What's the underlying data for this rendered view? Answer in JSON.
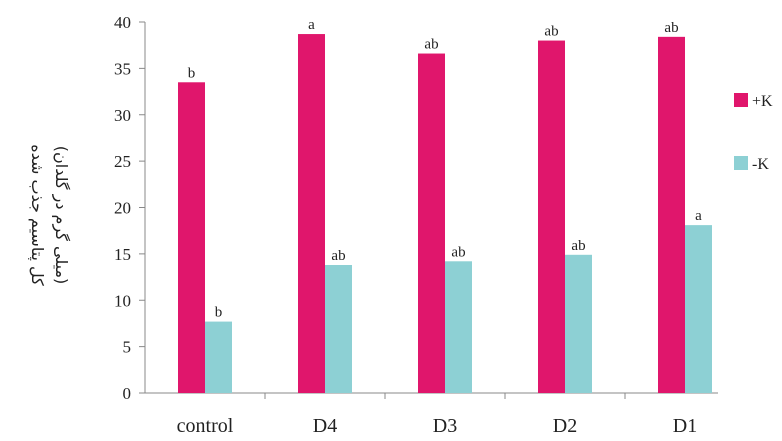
{
  "chart_data": {
    "type": "bar",
    "categories": [
      "control",
      "D4",
      "D3",
      "D2",
      "D1"
    ],
    "series": [
      {
        "name": "+K",
        "color": "#e0166c",
        "values": [
          33.5,
          38.7,
          36.6,
          38.0,
          38.4
        ],
        "labels": [
          "b",
          "a",
          "ab",
          "ab",
          "ab"
        ]
      },
      {
        "name": "-K",
        "color": "#8dd0d4",
        "values": [
          7.7,
          13.8,
          14.2,
          14.9,
          18.1
        ],
        "labels": [
          "b",
          "ab",
          "ab",
          "ab",
          "a"
        ]
      }
    ],
    "ylabel_line1": "کل پتاسیم جذب شده",
    "ylabel_line2": "(میلی گرم در گلدان)",
    "ylim": [
      0,
      40
    ],
    "yticks": [
      0,
      5,
      10,
      15,
      20,
      25,
      30,
      35,
      40
    ],
    "legend_position": "right",
    "grid": false
  }
}
